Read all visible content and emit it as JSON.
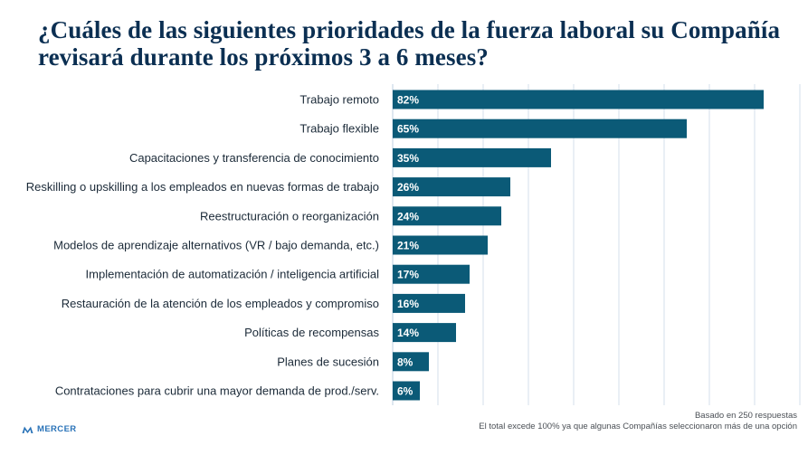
{
  "title": "¿Cuáles de las siguientes prioridades de la fuerza laboral su Compañía revisará durante los próximos 3 a 6 meses?",
  "footnotes": {
    "line1": "Basado en 250 respuestas",
    "line2": "El total excede 100% ya que algunas Compañías seleccionaron más de una  opción"
  },
  "logo": {
    "text": "MERCER",
    "icon": "mercer-logo-icon"
  },
  "colors": {
    "bar": "#0b5a77",
    "grid": "#c9d7e6",
    "title": "#0b2f52",
    "logo": "#2a73b8"
  },
  "chart_data": {
    "type": "bar",
    "orientation": "horizontal",
    "categories": [
      "Trabajo remoto",
      "Trabajo flexible",
      "Capacitaciones y transferencia de conocimiento",
      "Reskilling o upskilling a los empleados en nuevas formas de trabajo",
      "Reestructuración o reorganización",
      "Modelos de aprendizaje alternativos (VR / bajo demanda, etc.)",
      "Implementación de automatización / inteligencia artificial",
      "Restauración de la atención de los empleados y compromiso",
      "Políticas de recompensas",
      "Planes de sucesión",
      "Contrataciones para cubrir una mayor demanda de prod./serv."
    ],
    "values": [
      82,
      65,
      35,
      26,
      24,
      21,
      17,
      16,
      14,
      8,
      6
    ],
    "value_labels": [
      "82%",
      "65%",
      "35%",
      "26%",
      "24%",
      "21%",
      "17%",
      "16%",
      "14%",
      "8%",
      "6%"
    ],
    "unit": "%",
    "xlim": [
      0,
      90
    ],
    "grid": true,
    "legend": "none"
  }
}
